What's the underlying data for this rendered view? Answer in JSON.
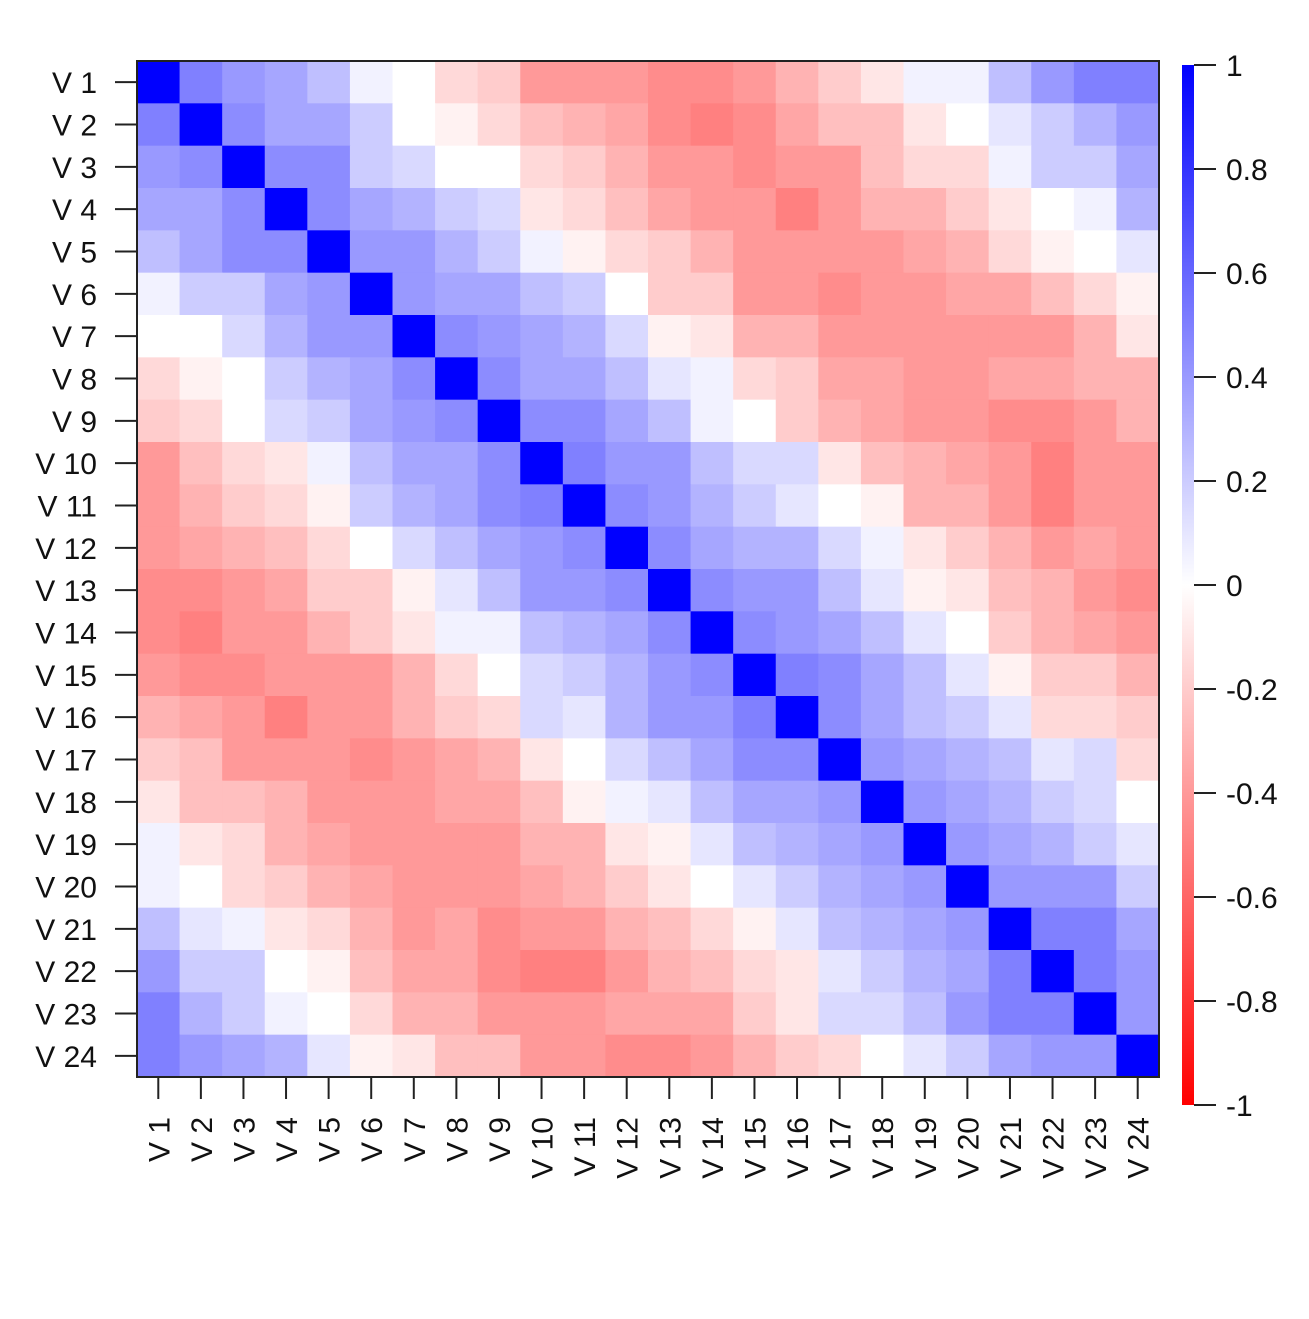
{
  "chart_data": {
    "type": "heatmap",
    "title": "",
    "variables": [
      "V 1",
      "V 2",
      "V 3",
      "V 4",
      "V 5",
      "V 6",
      "V 7",
      "V 8",
      "V 9",
      "V 10",
      "V 11",
      "V 12",
      "V 13",
      "V 14",
      "V 15",
      "V 16",
      "V 17",
      "V 18",
      "V 19",
      "V 20",
      "V 21",
      "V 22",
      "V 23",
      "V 24"
    ],
    "matrix": [
      [
        1.0,
        0.5,
        0.4,
        0.35,
        0.25,
        0.05,
        0.0,
        -0.15,
        -0.2,
        -0.4,
        -0.4,
        -0.4,
        -0.45,
        -0.45,
        -0.4,
        -0.3,
        -0.2,
        -0.1,
        0.05,
        0.05,
        0.25,
        0.4,
        0.5,
        0.5
      ],
      [
        0.5,
        1.0,
        0.45,
        0.35,
        0.35,
        0.2,
        0.0,
        -0.05,
        -0.15,
        -0.25,
        -0.3,
        -0.35,
        -0.45,
        -0.5,
        -0.45,
        -0.35,
        -0.25,
        -0.25,
        -0.1,
        0.0,
        0.1,
        0.2,
        0.3,
        0.4
      ],
      [
        0.4,
        0.45,
        1.0,
        0.45,
        0.45,
        0.2,
        0.15,
        0.0,
        0.0,
        -0.15,
        -0.2,
        -0.3,
        -0.4,
        -0.4,
        -0.45,
        -0.4,
        -0.4,
        -0.25,
        -0.15,
        -0.15,
        0.05,
        0.2,
        0.2,
        0.35
      ],
      [
        0.35,
        0.35,
        0.45,
        1.0,
        0.45,
        0.35,
        0.3,
        0.2,
        0.15,
        -0.1,
        -0.15,
        -0.25,
        -0.35,
        -0.4,
        -0.4,
        -0.5,
        -0.4,
        -0.3,
        -0.3,
        -0.2,
        -0.1,
        0.0,
        0.05,
        0.3
      ],
      [
        0.25,
        0.35,
        0.45,
        0.45,
        1.0,
        0.4,
        0.4,
        0.3,
        0.2,
        0.05,
        -0.05,
        -0.15,
        -0.2,
        -0.3,
        -0.4,
        -0.4,
        -0.4,
        -0.4,
        -0.35,
        -0.3,
        -0.15,
        -0.05,
        0.0,
        0.1
      ],
      [
        0.05,
        0.2,
        0.2,
        0.35,
        0.4,
        1.0,
        0.4,
        0.35,
        0.35,
        0.25,
        0.2,
        0.0,
        -0.2,
        -0.2,
        -0.4,
        -0.4,
        -0.45,
        -0.4,
        -0.4,
        -0.35,
        -0.35,
        -0.25,
        -0.15,
        -0.05
      ],
      [
        0.0,
        0.0,
        0.15,
        0.3,
        0.4,
        0.4,
        1.0,
        0.45,
        0.4,
        0.35,
        0.3,
        0.15,
        -0.05,
        -0.1,
        -0.3,
        -0.3,
        -0.4,
        -0.4,
        -0.4,
        -0.4,
        -0.4,
        -0.4,
        -0.3,
        -0.1
      ],
      [
        -0.15,
        -0.05,
        0.0,
        0.2,
        0.3,
        0.35,
        0.45,
        1.0,
        0.45,
        0.35,
        0.35,
        0.25,
        0.1,
        0.05,
        -0.15,
        -0.2,
        -0.35,
        -0.35,
        -0.4,
        -0.4,
        -0.35,
        -0.35,
        -0.3,
        -0.3
      ],
      [
        -0.2,
        -0.15,
        0.0,
        0.15,
        0.2,
        0.35,
        0.4,
        0.45,
        1.0,
        0.45,
        0.45,
        0.35,
        0.25,
        0.05,
        0.0,
        -0.2,
        -0.3,
        -0.35,
        -0.4,
        -0.4,
        -0.45,
        -0.45,
        -0.4,
        -0.3
      ],
      [
        -0.4,
        -0.25,
        -0.15,
        -0.1,
        0.05,
        0.25,
        0.35,
        0.35,
        0.45,
        1.0,
        0.5,
        0.4,
        0.4,
        0.25,
        0.15,
        0.15,
        -0.1,
        -0.25,
        -0.3,
        -0.35,
        -0.4,
        -0.5,
        -0.4,
        -0.4
      ],
      [
        -0.4,
        -0.3,
        -0.2,
        -0.15,
        -0.05,
        0.2,
        0.3,
        0.35,
        0.45,
        0.5,
        1.0,
        0.45,
        0.4,
        0.3,
        0.2,
        0.1,
        0.0,
        -0.05,
        -0.3,
        -0.3,
        -0.4,
        -0.5,
        -0.4,
        -0.4
      ],
      [
        -0.4,
        -0.35,
        -0.3,
        -0.25,
        -0.15,
        0.0,
        0.15,
        0.25,
        0.35,
        0.4,
        0.45,
        1.0,
        0.45,
        0.35,
        0.3,
        0.3,
        0.15,
        0.05,
        -0.1,
        -0.2,
        -0.3,
        -0.4,
        -0.35,
        -0.4
      ],
      [
        -0.45,
        -0.45,
        -0.4,
        -0.35,
        -0.2,
        -0.2,
        -0.05,
        0.1,
        0.25,
        0.4,
        0.4,
        0.45,
        1.0,
        0.45,
        0.4,
        0.4,
        0.25,
        0.1,
        -0.05,
        -0.1,
        -0.25,
        -0.3,
        -0.4,
        -0.45
      ],
      [
        -0.45,
        -0.5,
        -0.4,
        -0.4,
        -0.3,
        -0.2,
        -0.1,
        0.05,
        0.05,
        0.25,
        0.3,
        0.35,
        0.45,
        1.0,
        0.45,
        0.4,
        0.35,
        0.25,
        0.1,
        0.0,
        -0.2,
        -0.3,
        -0.35,
        -0.4
      ],
      [
        -0.4,
        -0.45,
        -0.45,
        -0.4,
        -0.4,
        -0.4,
        -0.3,
        -0.15,
        0.0,
        0.15,
        0.2,
        0.3,
        0.4,
        0.45,
        1.0,
        0.5,
        0.45,
        0.35,
        0.25,
        0.1,
        -0.05,
        -0.2,
        -0.2,
        -0.3
      ],
      [
        -0.3,
        -0.35,
        -0.4,
        -0.5,
        -0.4,
        -0.4,
        -0.3,
        -0.2,
        -0.15,
        0.15,
        0.1,
        0.3,
        0.4,
        0.4,
        0.5,
        1.0,
        0.45,
        0.35,
        0.25,
        0.2,
        0.1,
        -0.15,
        -0.15,
        -0.2
      ],
      [
        -0.2,
        -0.25,
        -0.4,
        -0.4,
        -0.4,
        -0.45,
        -0.4,
        -0.35,
        -0.3,
        -0.1,
        0.0,
        0.15,
        0.25,
        0.35,
        0.45,
        0.45,
        1.0,
        0.4,
        0.35,
        0.3,
        0.25,
        0.1,
        0.15,
        -0.15
      ],
      [
        -0.1,
        -0.25,
        -0.25,
        -0.3,
        -0.4,
        -0.4,
        -0.4,
        -0.35,
        -0.35,
        -0.25,
        -0.05,
        0.05,
        0.1,
        0.25,
        0.35,
        0.35,
        0.4,
        1.0,
        0.4,
        0.35,
        0.3,
        0.2,
        0.15,
        0.0
      ],
      [
        0.05,
        -0.1,
        -0.15,
        -0.3,
        -0.35,
        -0.4,
        -0.4,
        -0.4,
        -0.4,
        -0.3,
        -0.3,
        -0.1,
        -0.05,
        0.1,
        0.25,
        0.3,
        0.35,
        0.4,
        1.0,
        0.4,
        0.35,
        0.3,
        0.2,
        0.1
      ],
      [
        0.05,
        0.0,
        -0.15,
        -0.2,
        -0.3,
        -0.35,
        -0.4,
        -0.4,
        -0.4,
        -0.35,
        -0.3,
        -0.2,
        -0.1,
        0.0,
        0.1,
        0.2,
        0.3,
        0.35,
        0.4,
        1.0,
        0.4,
        0.4,
        0.4,
        0.2
      ],
      [
        0.25,
        0.1,
        0.05,
        -0.1,
        -0.15,
        -0.3,
        -0.4,
        -0.35,
        -0.45,
        -0.4,
        -0.4,
        -0.3,
        -0.25,
        -0.15,
        -0.05,
        0.1,
        0.25,
        0.3,
        0.35,
        0.4,
        1.0,
        0.5,
        0.5,
        0.35
      ],
      [
        0.4,
        0.2,
        0.2,
        0.0,
        -0.05,
        -0.25,
        -0.35,
        -0.35,
        -0.45,
        -0.5,
        -0.5,
        -0.4,
        -0.3,
        -0.25,
        -0.15,
        -0.1,
        0.1,
        0.2,
        0.3,
        0.35,
        0.5,
        1.0,
        0.5,
        0.4
      ],
      [
        0.5,
        0.3,
        0.2,
        0.05,
        0.0,
        -0.15,
        -0.3,
        -0.3,
        -0.4,
        -0.4,
        -0.4,
        -0.35,
        -0.35,
        -0.35,
        -0.2,
        -0.1,
        0.15,
        0.15,
        0.25,
        0.4,
        0.5,
        0.5,
        1.0,
        0.4
      ],
      [
        0.5,
        0.4,
        0.35,
        0.3,
        0.1,
        -0.05,
        -0.1,
        -0.25,
        -0.25,
        -0.4,
        -0.4,
        -0.45,
        -0.45,
        -0.4,
        -0.3,
        -0.2,
        -0.15,
        0.0,
        0.1,
        0.2,
        0.35,
        0.4,
        0.4,
        1.0
      ]
    ],
    "legend": {
      "ticks": [
        "1",
        "0.8",
        "0.6",
        "0.4",
        "0.2",
        "0",
        "-0.2",
        "-0.4",
        "-0.6",
        "-0.8",
        "-1"
      ],
      "range": [
        -1,
        1
      ],
      "placement": "right"
    },
    "colors": {
      "negative": "#ff0000",
      "zero": "#ffffff",
      "positive": "#0000ff"
    }
  }
}
